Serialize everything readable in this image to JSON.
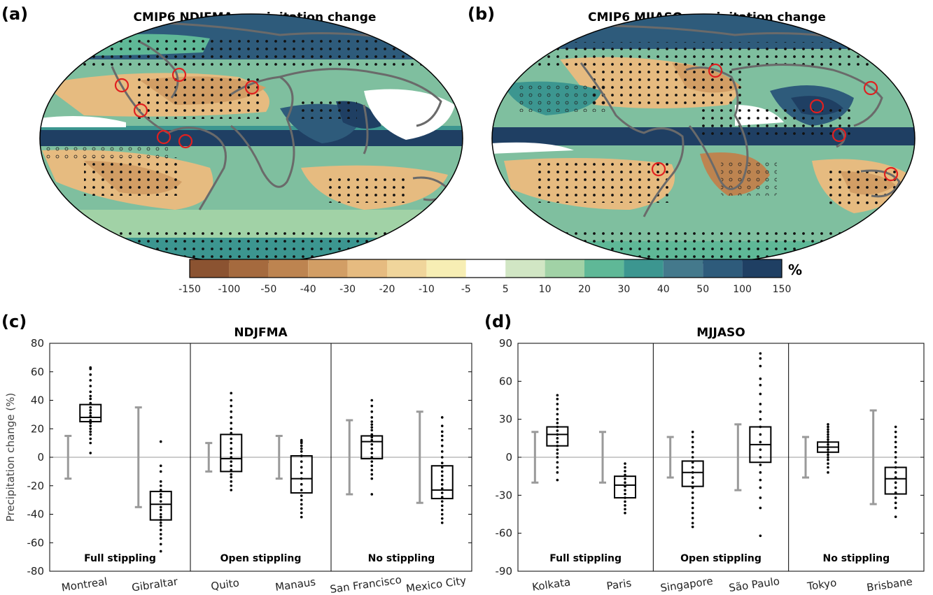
{
  "panels": {
    "a": {
      "label": "(a)",
      "title": "CMIP6 NDJFMA precipitation change"
    },
    "b": {
      "label": "(b)",
      "title": "CMIP6 MJJASO precipitation change"
    },
    "c": {
      "label": "(c)"
    },
    "d": {
      "label": "(d)"
    }
  },
  "colorbar": {
    "unit": "%",
    "ticks": [
      "-150",
      "-100",
      "-50",
      "-40",
      "-30",
      "-20",
      "-10",
      "-5",
      "5",
      "10",
      "20",
      "30",
      "40",
      "50",
      "100",
      "150"
    ],
    "colors": [
      "#8b5331",
      "#a56a3e",
      "#bd8450",
      "#d29e65",
      "#e6bb80",
      "#f0d59b",
      "#f7eeb4",
      "#ffffff",
      "#d1e6c4",
      "#a1d2a6",
      "#5fb897",
      "#3c9690",
      "#44798c",
      "#2e5b7b",
      "#1f3f63"
    ]
  },
  "map_markers": {
    "a": [
      {
        "city": "San Francisco"
      },
      {
        "city": "Mexico City"
      },
      {
        "city": "Montreal"
      },
      {
        "city": "Quito"
      },
      {
        "city": "Manaus"
      },
      {
        "city": "Gibraltar"
      }
    ],
    "b": [
      {
        "city": "Paris"
      },
      {
        "city": "Kolkata"
      },
      {
        "city": "Singapore"
      },
      {
        "city": "Tokyo"
      },
      {
        "city": "São Paulo"
      },
      {
        "city": "Brisbane"
      }
    ]
  },
  "chart_data": [
    {
      "type": "box",
      "title": "NDJFMA",
      "ylabel": "Precipitation change (%)",
      "ylim": [
        -80,
        80
      ],
      "yticks": [
        -80,
        -60,
        -40,
        -20,
        0,
        20,
        40,
        60,
        80
      ],
      "groups": [
        "Full stippling",
        "Open stippling",
        "No stippling"
      ],
      "categories": [
        "Montreal",
        "Gibraltar",
        "Quito",
        "Manaus",
        "San Francisco",
        "Mexico City"
      ],
      "series": [
        {
          "category": "Montreal",
          "range": [
            -15,
            15
          ],
          "q1": 25,
          "median": 28,
          "q3": 37,
          "points": [
            3,
            10,
            13,
            16,
            18,
            20,
            22,
            24,
            26,
            29,
            31,
            33,
            35,
            38,
            41,
            43,
            46,
            50,
            54,
            58,
            62,
            63
          ]
        },
        {
          "category": "Gibraltar",
          "range": [
            -35,
            35
          ],
          "q1": -44,
          "median": -33,
          "q3": -24,
          "points": [
            -66,
            -61,
            -57,
            -54,
            -51,
            -48,
            -46,
            -44,
            -42,
            -40,
            -37,
            -35,
            -31,
            -28,
            -26,
            -23,
            -20,
            -17,
            -10,
            -6,
            11
          ]
        },
        {
          "category": "Quito",
          "range": [
            -10,
            10
          ],
          "q1": -10,
          "median": -1,
          "q3": 16,
          "points": [
            -23,
            -20,
            -17,
            -14,
            -12,
            -9,
            -6,
            -3,
            0,
            3,
            6,
            10,
            13,
            17,
            20,
            24,
            28,
            32,
            36,
            40,
            45
          ]
        },
        {
          "category": "Manaus",
          "range": [
            -15,
            15
          ],
          "q1": -25,
          "median": -15,
          "q3": 1,
          "points": [
            -42,
            -39,
            -36,
            -33,
            -30,
            -27,
            -23,
            -19,
            -15,
            -11,
            -7,
            -3,
            1,
            4,
            6,
            8,
            10,
            11,
            12
          ]
        },
        {
          "category": "San Francisco",
          "range": [
            -26,
            26
          ],
          "q1": -1,
          "median": 11,
          "q3": 15,
          "points": [
            -26,
            -15,
            -12,
            -9,
            -6,
            -3,
            0,
            3,
            6,
            9,
            12,
            14,
            16,
            19,
            21,
            23,
            25,
            28,
            32,
            36,
            40
          ]
        },
        {
          "category": "Mexico City",
          "range": [
            -32,
            32
          ],
          "q1": -29,
          "median": -23,
          "q3": -6,
          "points": [
            -46,
            -43,
            -40,
            -37,
            -34,
            -31,
            -28,
            -25,
            -22,
            -19,
            -16,
            -13,
            -10,
            -7,
            -4,
            0,
            4,
            8,
            12,
            15,
            18,
            22,
            28
          ]
        }
      ]
    },
    {
      "type": "box",
      "title": "MJJASO",
      "ylabel": "",
      "ylim": [
        -90,
        90
      ],
      "yticks": [
        -90,
        -60,
        -30,
        0,
        30,
        60,
        90
      ],
      "groups": [
        "Full stippling",
        "Open stippling",
        "No stippling"
      ],
      "categories": [
        "Kolkata",
        "Paris",
        "Singapore",
        "São Paulo",
        "Tokyo",
        "Brisbane"
      ],
      "series": [
        {
          "category": "Kolkata",
          "range": [
            -20,
            20
          ],
          "q1": 9,
          "median": 18,
          "q3": 24,
          "points": [
            -18,
            -12,
            -8,
            -4,
            0,
            3,
            6,
            9,
            12,
            15,
            18,
            21,
            24,
            27,
            30,
            34,
            38,
            42,
            46,
            49
          ]
        },
        {
          "category": "Paris",
          "range": [
            -20,
            20
          ],
          "q1": -32,
          "median": -22,
          "q3": -15,
          "points": [
            -44,
            -41,
            -38,
            -35,
            -32,
            -29,
            -26,
            -23,
            -20,
            -17,
            -14,
            -11,
            -8,
            -5
          ]
        },
        {
          "category": "Singapore",
          "range": [
            -16,
            16
          ],
          "q1": -23,
          "median": -12,
          "q3": -3,
          "points": [
            -55,
            -52,
            -48,
            -44,
            -40,
            -36,
            -32,
            -28,
            -24,
            -20,
            -16,
            -12,
            -8,
            -4,
            0,
            4,
            8,
            12,
            16,
            20
          ]
        },
        {
          "category": "São Paulo",
          "range": [
            -26,
            26
          ],
          "q1": -4,
          "median": 10,
          "q3": 24,
          "points": [
            -62,
            -40,
            -32,
            -24,
            -18,
            -12,
            -6,
            0,
            6,
            12,
            18,
            24,
            30,
            36,
            42,
            50,
            57,
            62,
            72,
            78,
            82
          ]
        },
        {
          "category": "Tokyo",
          "range": [
            -16,
            16
          ],
          "q1": 4,
          "median": 8,
          "q3": 12,
          "points": [
            -12,
            -8,
            -5,
            -2,
            0,
            2,
            4,
            6,
            8,
            10,
            12,
            14,
            16,
            18,
            20,
            22,
            24,
            26
          ]
        },
        {
          "category": "Brisbane",
          "range": [
            -37,
            37
          ],
          "q1": -29,
          "median": -17,
          "q3": -8,
          "points": [
            -47,
            -40,
            -36,
            -32,
            -28,
            -24,
            -20,
            -16,
            -12,
            -8,
            -4,
            0,
            4,
            8,
            12,
            16,
            20,
            24
          ]
        }
      ]
    }
  ]
}
